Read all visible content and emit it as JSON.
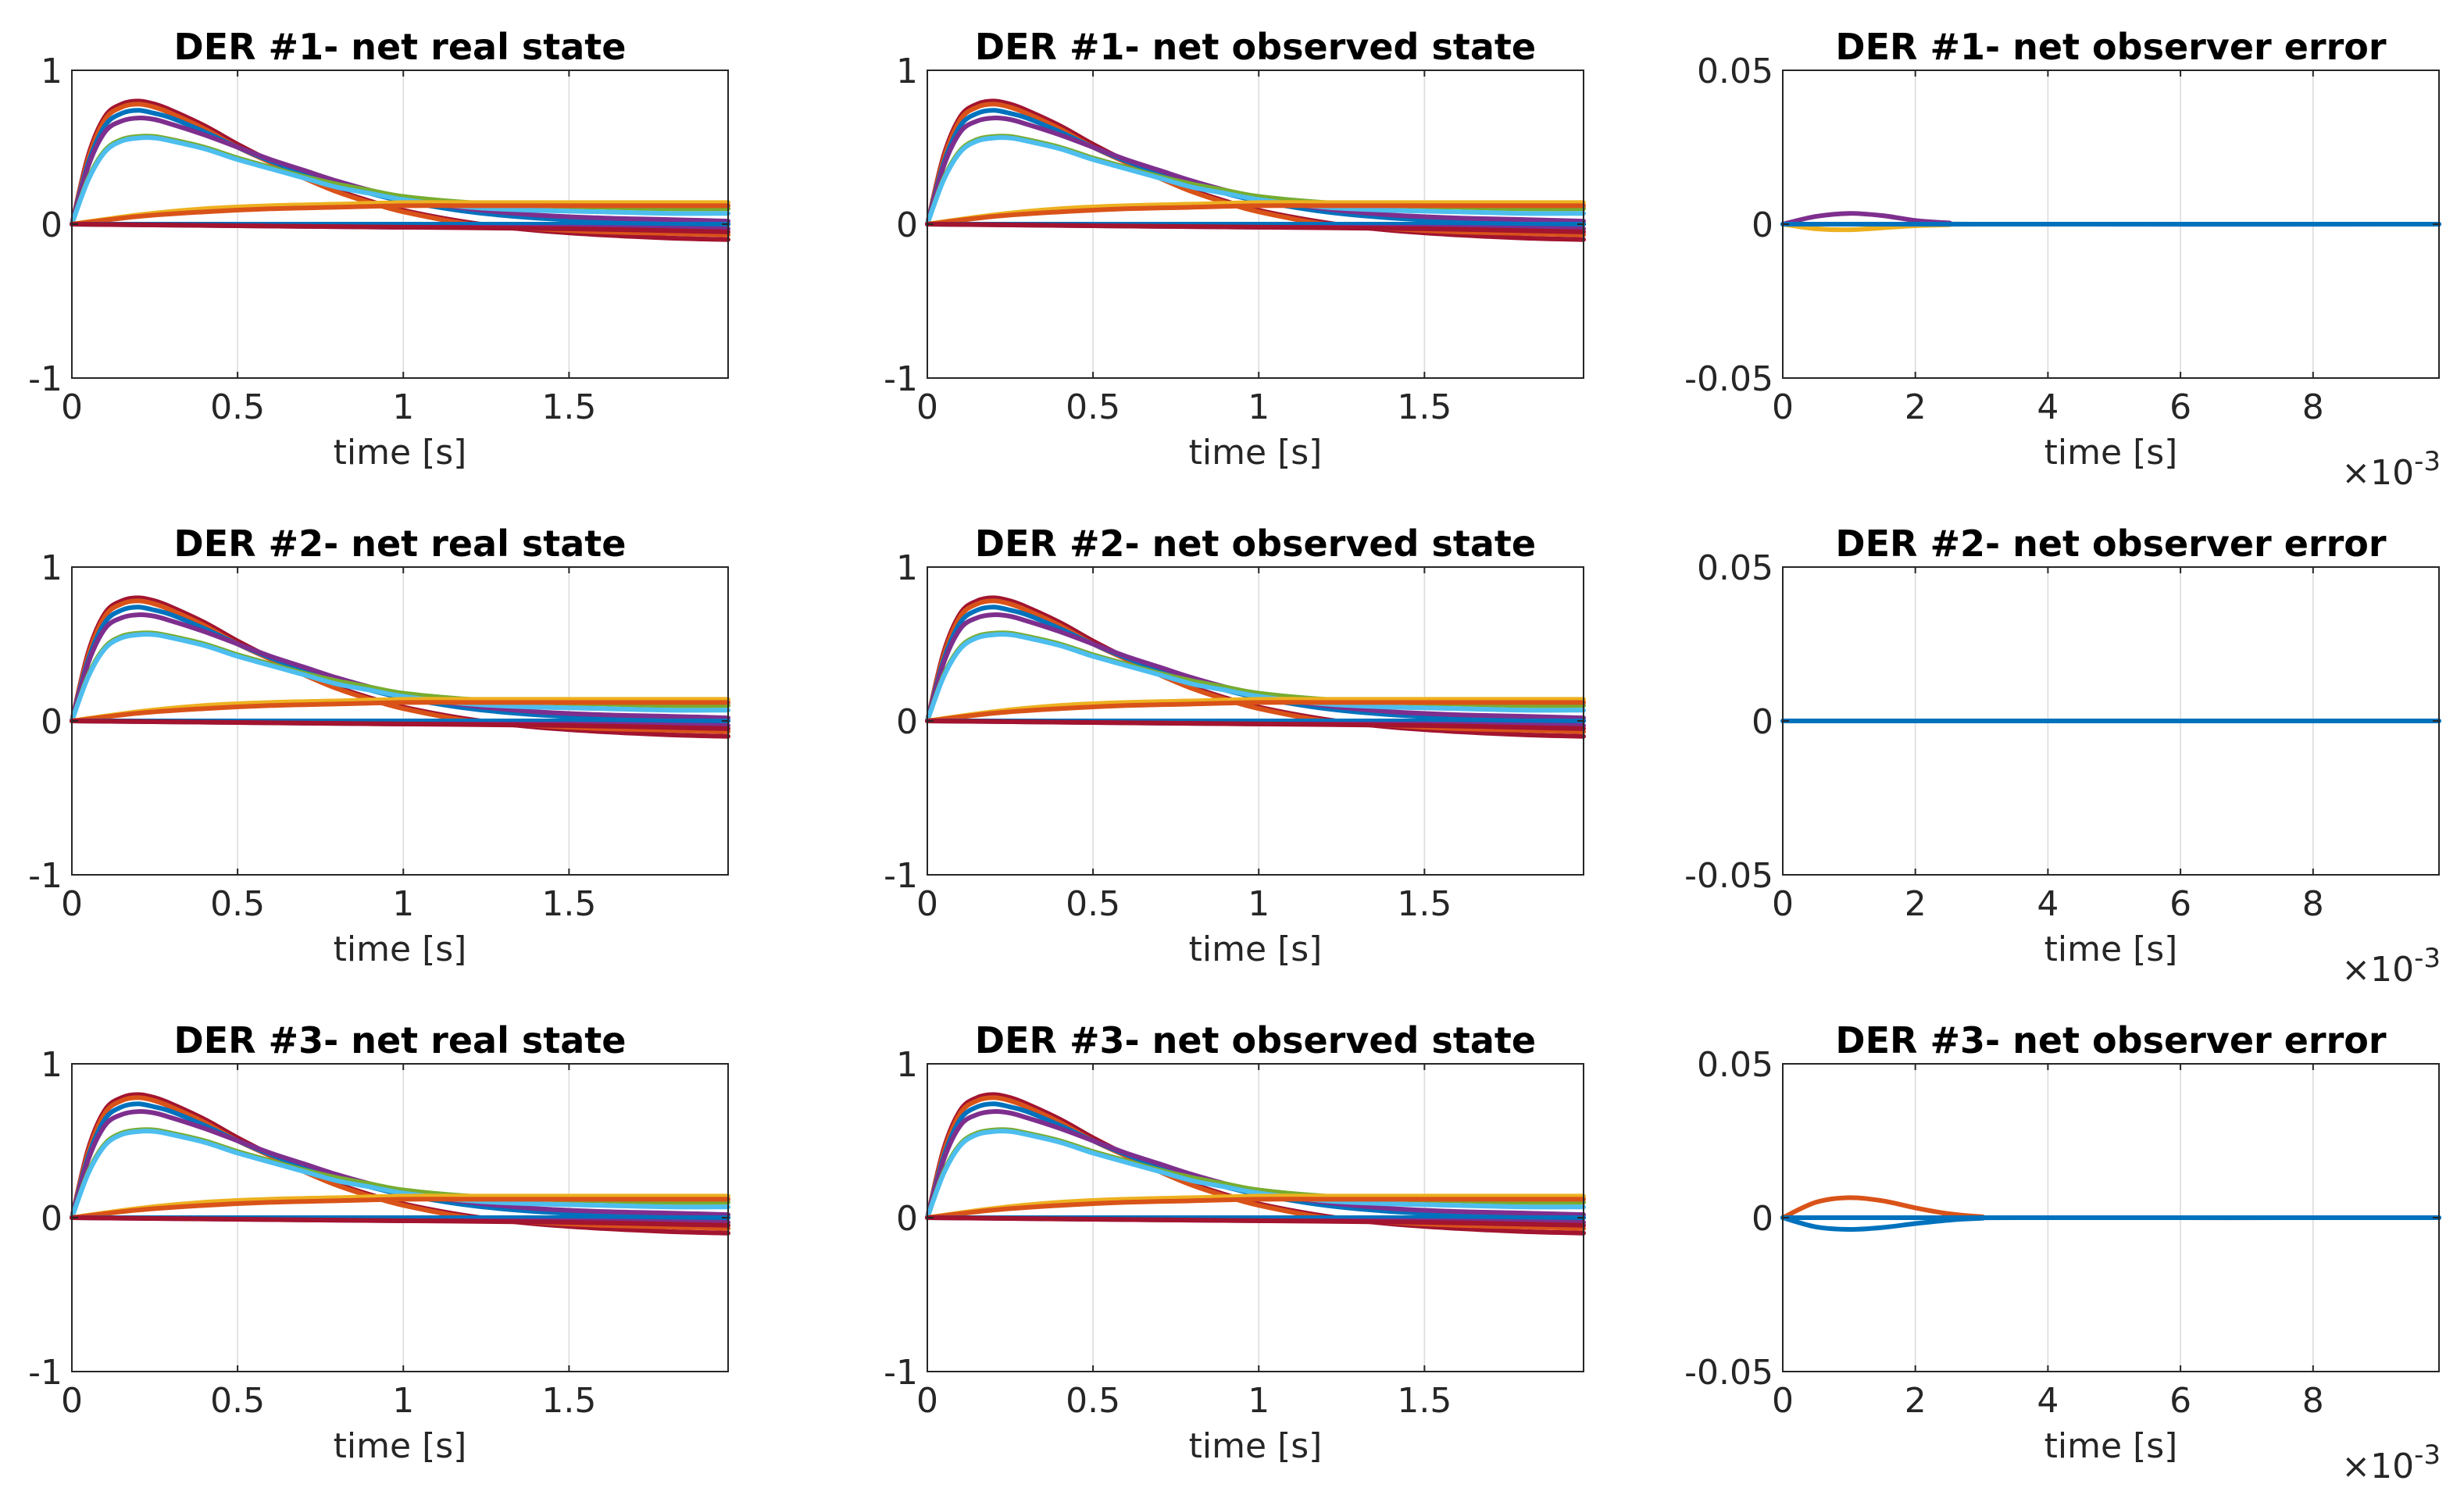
{
  "colors": {
    "blue": "#0072BD",
    "orange": "#D95319",
    "yellow": "#EDB120",
    "purple": "#7E2F8E",
    "green": "#77AC30",
    "cyan": "#4DBEEE",
    "dark_red": "#A2142F"
  },
  "chart_data": [
    {
      "id": "der1-real",
      "type": "line",
      "title": "DER #1- net real state",
      "xlabel": "time [s]",
      "xlim": [
        0,
        1.98
      ],
      "ylim": [
        -1,
        1
      ],
      "xticks": [
        0,
        0.5,
        1,
        1.5
      ],
      "xtick_labels": [
        "0",
        "0.5",
        "1",
        "1.5"
      ],
      "yticks": [
        -1,
        0,
        1
      ],
      "ytick_labels": [
        "-1",
        "0",
        "1"
      ],
      "grid": "x",
      "series_profile": "state"
    },
    {
      "id": "der1-observed",
      "type": "line",
      "title": "DER #1- net observed state",
      "xlabel": "time [s]",
      "xlim": [
        0,
        1.98
      ],
      "ylim": [
        -1,
        1
      ],
      "xticks": [
        0,
        0.5,
        1,
        1.5
      ],
      "xtick_labels": [
        "0",
        "0.5",
        "1",
        "1.5"
      ],
      "yticks": [
        -1,
        0,
        1
      ],
      "ytick_labels": [
        "-1",
        "0",
        "1"
      ],
      "grid": "x",
      "series_profile": "state"
    },
    {
      "id": "der1-error",
      "type": "line",
      "title": "DER #1- net observer error",
      "xlabel": "time [s]",
      "xlim": [
        0,
        0.0099
      ],
      "ylim": [
        -0.05,
        0.05
      ],
      "xticks": [
        0,
        0.002,
        0.004,
        0.006,
        0.008
      ],
      "xtick_labels": [
        "0",
        "2",
        "4",
        "6",
        "8"
      ],
      "yticks": [
        -0.05,
        0,
        0.05
      ],
      "ytick_labels": [
        "-0.05",
        "0",
        "0.05"
      ],
      "grid": "x",
      "x_multiplier": "×10",
      "x_multiplier_exp": "-3",
      "series_profile": "error1"
    },
    {
      "id": "der2-real",
      "type": "line",
      "title": "DER #2- net real state",
      "xlabel": "time [s]",
      "xlim": [
        0,
        1.98
      ],
      "ylim": [
        -1,
        1
      ],
      "xticks": [
        0,
        0.5,
        1,
        1.5
      ],
      "xtick_labels": [
        "0",
        "0.5",
        "1",
        "1.5"
      ],
      "yticks": [
        -1,
        0,
        1
      ],
      "ytick_labels": [
        "-1",
        "0",
        "1"
      ],
      "grid": "x",
      "series_profile": "state"
    },
    {
      "id": "der2-observed",
      "type": "line",
      "title": "DER #2- net observed state",
      "xlabel": "time [s]",
      "xlim": [
        0,
        1.98
      ],
      "ylim": [
        -1,
        1
      ],
      "xticks": [
        0,
        0.5,
        1,
        1.5
      ],
      "xtick_labels": [
        "0",
        "0.5",
        "1",
        "1.5"
      ],
      "yticks": [
        -1,
        0,
        1
      ],
      "ytick_labels": [
        "-1",
        "0",
        "1"
      ],
      "grid": "x",
      "series_profile": "state"
    },
    {
      "id": "der2-error",
      "type": "line",
      "title": "DER #2- net observer error",
      "xlabel": "time [s]",
      "xlim": [
        0,
        0.0099
      ],
      "ylim": [
        -0.05,
        0.05
      ],
      "xticks": [
        0,
        0.002,
        0.004,
        0.006,
        0.008
      ],
      "xtick_labels": [
        "0",
        "2",
        "4",
        "6",
        "8"
      ],
      "yticks": [
        -0.05,
        0,
        0.05
      ],
      "ytick_labels": [
        "-0.05",
        "0",
        "0.05"
      ],
      "grid": "x",
      "x_multiplier": "×10",
      "x_multiplier_exp": "-3",
      "series_profile": "error2"
    },
    {
      "id": "der3-real",
      "type": "line",
      "title": "DER #3- net real state",
      "xlabel": "time [s]",
      "xlim": [
        0,
        1.98
      ],
      "ylim": [
        -1,
        1
      ],
      "xticks": [
        0,
        0.5,
        1,
        1.5
      ],
      "xtick_labels": [
        "0",
        "0.5",
        "1",
        "1.5"
      ],
      "yticks": [
        -1,
        0,
        1
      ],
      "ytick_labels": [
        "-1",
        "0",
        "1"
      ],
      "grid": "x",
      "series_profile": "state"
    },
    {
      "id": "der3-observed",
      "type": "line",
      "title": "DER #3- net observed state",
      "xlabel": "time [s]",
      "xlim": [
        0,
        1.98
      ],
      "ylim": [
        -1,
        1
      ],
      "xticks": [
        0,
        0.5,
        1,
        1.5
      ],
      "xtick_labels": [
        "0",
        "0.5",
        "1",
        "1.5"
      ],
      "yticks": [
        -1,
        0,
        1
      ],
      "ytick_labels": [
        "-1",
        "0",
        "1"
      ],
      "grid": "x",
      "series_profile": "state"
    },
    {
      "id": "der3-error",
      "type": "line",
      "title": "DER #3- net observer error",
      "xlabel": "time [s]",
      "xlim": [
        0,
        0.0099
      ],
      "ylim": [
        -0.05,
        0.05
      ],
      "xticks": [
        0,
        0.002,
        0.004,
        0.006,
        0.008
      ],
      "xtick_labels": [
        "0",
        "2",
        "4",
        "6",
        "8"
      ],
      "yticks": [
        -0.05,
        0,
        0.05
      ],
      "ytick_labels": [
        "-0.05",
        "0",
        "0.05"
      ],
      "grid": "x",
      "x_multiplier": "×10",
      "x_multiplier_exp": "-3",
      "series_profile": "error3"
    }
  ],
  "series_profiles": {
    "state": [
      {
        "name": "state-1",
        "color": "#A2142F",
        "x": [
          0,
          0.05,
          0.1,
          0.15,
          0.2,
          0.25,
          0.3,
          0.4,
          0.5,
          0.6,
          0.7,
          0.8,
          0.9,
          1.0,
          1.2,
          1.4,
          1.6,
          1.8,
          1.98
        ],
        "y": [
          0,
          0.45,
          0.7,
          0.78,
          0.8,
          0.78,
          0.74,
          0.64,
          0.52,
          0.41,
          0.31,
          0.22,
          0.15,
          0.09,
          0.01,
          -0.04,
          -0.07,
          -0.09,
          -0.1
        ]
      },
      {
        "name": "state-2",
        "color": "#D95319",
        "x": [
          0,
          0.05,
          0.1,
          0.15,
          0.2,
          0.25,
          0.3,
          0.4,
          0.5,
          0.6,
          0.7,
          0.8,
          0.9,
          1.0,
          1.2,
          1.4,
          1.6,
          1.8,
          1.98
        ],
        "y": [
          0,
          0.43,
          0.68,
          0.76,
          0.78,
          0.76,
          0.72,
          0.62,
          0.5,
          0.4,
          0.3,
          0.21,
          0.14,
          0.08,
          0.0,
          -0.03,
          -0.05,
          -0.06,
          -0.07
        ]
      },
      {
        "name": "state-3",
        "color": "#0072BD",
        "x": [
          0,
          0.05,
          0.1,
          0.15,
          0.2,
          0.25,
          0.3,
          0.4,
          0.5,
          0.6,
          0.7,
          0.8,
          0.9,
          1.0,
          1.2,
          1.4,
          1.6,
          1.8,
          1.98
        ],
        "y": [
          0,
          0.4,
          0.64,
          0.72,
          0.74,
          0.72,
          0.69,
          0.6,
          0.5,
          0.41,
          0.33,
          0.26,
          0.2,
          0.15,
          0.08,
          0.04,
          0.02,
          0.01,
          0.0
        ]
      },
      {
        "name": "state-4",
        "color": "#7E2F8E",
        "x": [
          0,
          0.05,
          0.1,
          0.15,
          0.2,
          0.25,
          0.3,
          0.4,
          0.5,
          0.6,
          0.7,
          0.8,
          0.9,
          1.0,
          1.2,
          1.4,
          1.6,
          1.8,
          1.98
        ],
        "y": [
          0,
          0.38,
          0.6,
          0.67,
          0.69,
          0.68,
          0.65,
          0.58,
          0.5,
          0.42,
          0.35,
          0.28,
          0.22,
          0.17,
          0.1,
          0.06,
          0.04,
          0.03,
          0.02
        ]
      },
      {
        "name": "state-5",
        "color": "#77AC30",
        "x": [
          0,
          0.05,
          0.1,
          0.15,
          0.2,
          0.25,
          0.3,
          0.4,
          0.5,
          0.6,
          0.7,
          0.8,
          0.9,
          1.0,
          1.2,
          1.4,
          1.6,
          1.8,
          1.98
        ],
        "y": [
          0,
          0.3,
          0.48,
          0.55,
          0.57,
          0.57,
          0.55,
          0.5,
          0.43,
          0.37,
          0.31,
          0.26,
          0.22,
          0.18,
          0.14,
          0.12,
          0.11,
          0.1,
          0.1
        ]
      },
      {
        "name": "state-6",
        "color": "#4DBEEE",
        "x": [
          0,
          0.05,
          0.1,
          0.15,
          0.2,
          0.25,
          0.3,
          0.4,
          0.5,
          0.6,
          0.7,
          0.8,
          0.9,
          1.0,
          1.2,
          1.4,
          1.6,
          1.8,
          1.98
        ],
        "y": [
          0,
          0.29,
          0.47,
          0.54,
          0.56,
          0.56,
          0.54,
          0.49,
          0.42,
          0.36,
          0.3,
          0.24,
          0.2,
          0.16,
          0.11,
          0.09,
          0.08,
          0.07,
          0.07
        ]
      },
      {
        "name": "state-7",
        "color": "#EDB120",
        "x": [
          0,
          0.2,
          0.4,
          0.6,
          0.8,
          1.0,
          1.2,
          1.4,
          1.6,
          1.8,
          1.98
        ],
        "y": [
          0,
          0.06,
          0.1,
          0.12,
          0.13,
          0.14,
          0.14,
          0.14,
          0.14,
          0.14,
          0.14
        ]
      },
      {
        "name": "state-8",
        "color": "#D95319",
        "x": [
          0,
          0.2,
          0.4,
          0.6,
          0.8,
          1.0,
          1.2,
          1.4,
          1.6,
          1.8,
          1.98
        ],
        "y": [
          0,
          0.05,
          0.08,
          0.1,
          0.11,
          0.12,
          0.12,
          0.12,
          0.12,
          0.12,
          0.12
        ]
      },
      {
        "name": "state-9",
        "color": "#0072BD",
        "x": [
          0,
          0.5,
          1.0,
          1.5,
          1.98
        ],
        "y": [
          0,
          0.0,
          0.0,
          0.0,
          0.0
        ]
      },
      {
        "name": "state-10",
        "color": "#7E2F8E",
        "x": [
          0,
          0.5,
          1.0,
          1.5,
          1.98
        ],
        "y": [
          0,
          -0.01,
          -0.02,
          -0.02,
          -0.03
        ]
      },
      {
        "name": "state-11",
        "color": "#A2142F",
        "x": [
          0,
          0.5,
          1.0,
          1.5,
          1.98
        ],
        "y": [
          0,
          -0.01,
          -0.02,
          -0.03,
          -0.05
        ]
      }
    ],
    "error1": [
      {
        "name": "error-yellow",
        "color": "#EDB120",
        "x": [
          0,
          0.0005,
          0.001,
          0.0015,
          0.002,
          0.0025,
          0.003,
          0.0099
        ],
        "y": [
          0,
          -0.0015,
          -0.0018,
          -0.0012,
          -0.0005,
          -0.0002,
          0,
          0
        ]
      },
      {
        "name": "error-purple",
        "color": "#7E2F8E",
        "x": [
          0,
          0.0005,
          0.001,
          0.0015,
          0.002,
          0.0025,
          0.003,
          0.0099
        ],
        "y": [
          0,
          0.0025,
          0.0035,
          0.0028,
          0.0012,
          0.0004,
          0,
          0
        ]
      },
      {
        "name": "error-blue",
        "color": "#0072BD",
        "x": [
          0,
          0.0099
        ],
        "y": [
          0,
          0
        ]
      }
    ],
    "error2": [
      {
        "name": "error-blue",
        "color": "#0072BD",
        "x": [
          0,
          0.0099
        ],
        "y": [
          0,
          0
        ]
      }
    ],
    "error3": [
      {
        "name": "error-orange",
        "color": "#D95319",
        "x": [
          0,
          0.0005,
          0.001,
          0.0015,
          0.002,
          0.0025,
          0.003,
          0.0035,
          0.0099
        ],
        "y": [
          0,
          0.005,
          0.0065,
          0.0055,
          0.0032,
          0.0013,
          0.0003,
          0,
          0
        ]
      },
      {
        "name": "error-blue-2",
        "color": "#0072BD",
        "x": [
          0,
          0.0005,
          0.001,
          0.0015,
          0.002,
          0.0025,
          0.003,
          0.0035,
          0.0099
        ],
        "y": [
          0,
          -0.003,
          -0.0038,
          -0.0032,
          -0.0019,
          -0.0008,
          -0.0002,
          0,
          0
        ]
      },
      {
        "name": "error-blue",
        "color": "#0072BD",
        "x": [
          0,
          0.0099
        ],
        "y": [
          0,
          0
        ]
      }
    ]
  }
}
